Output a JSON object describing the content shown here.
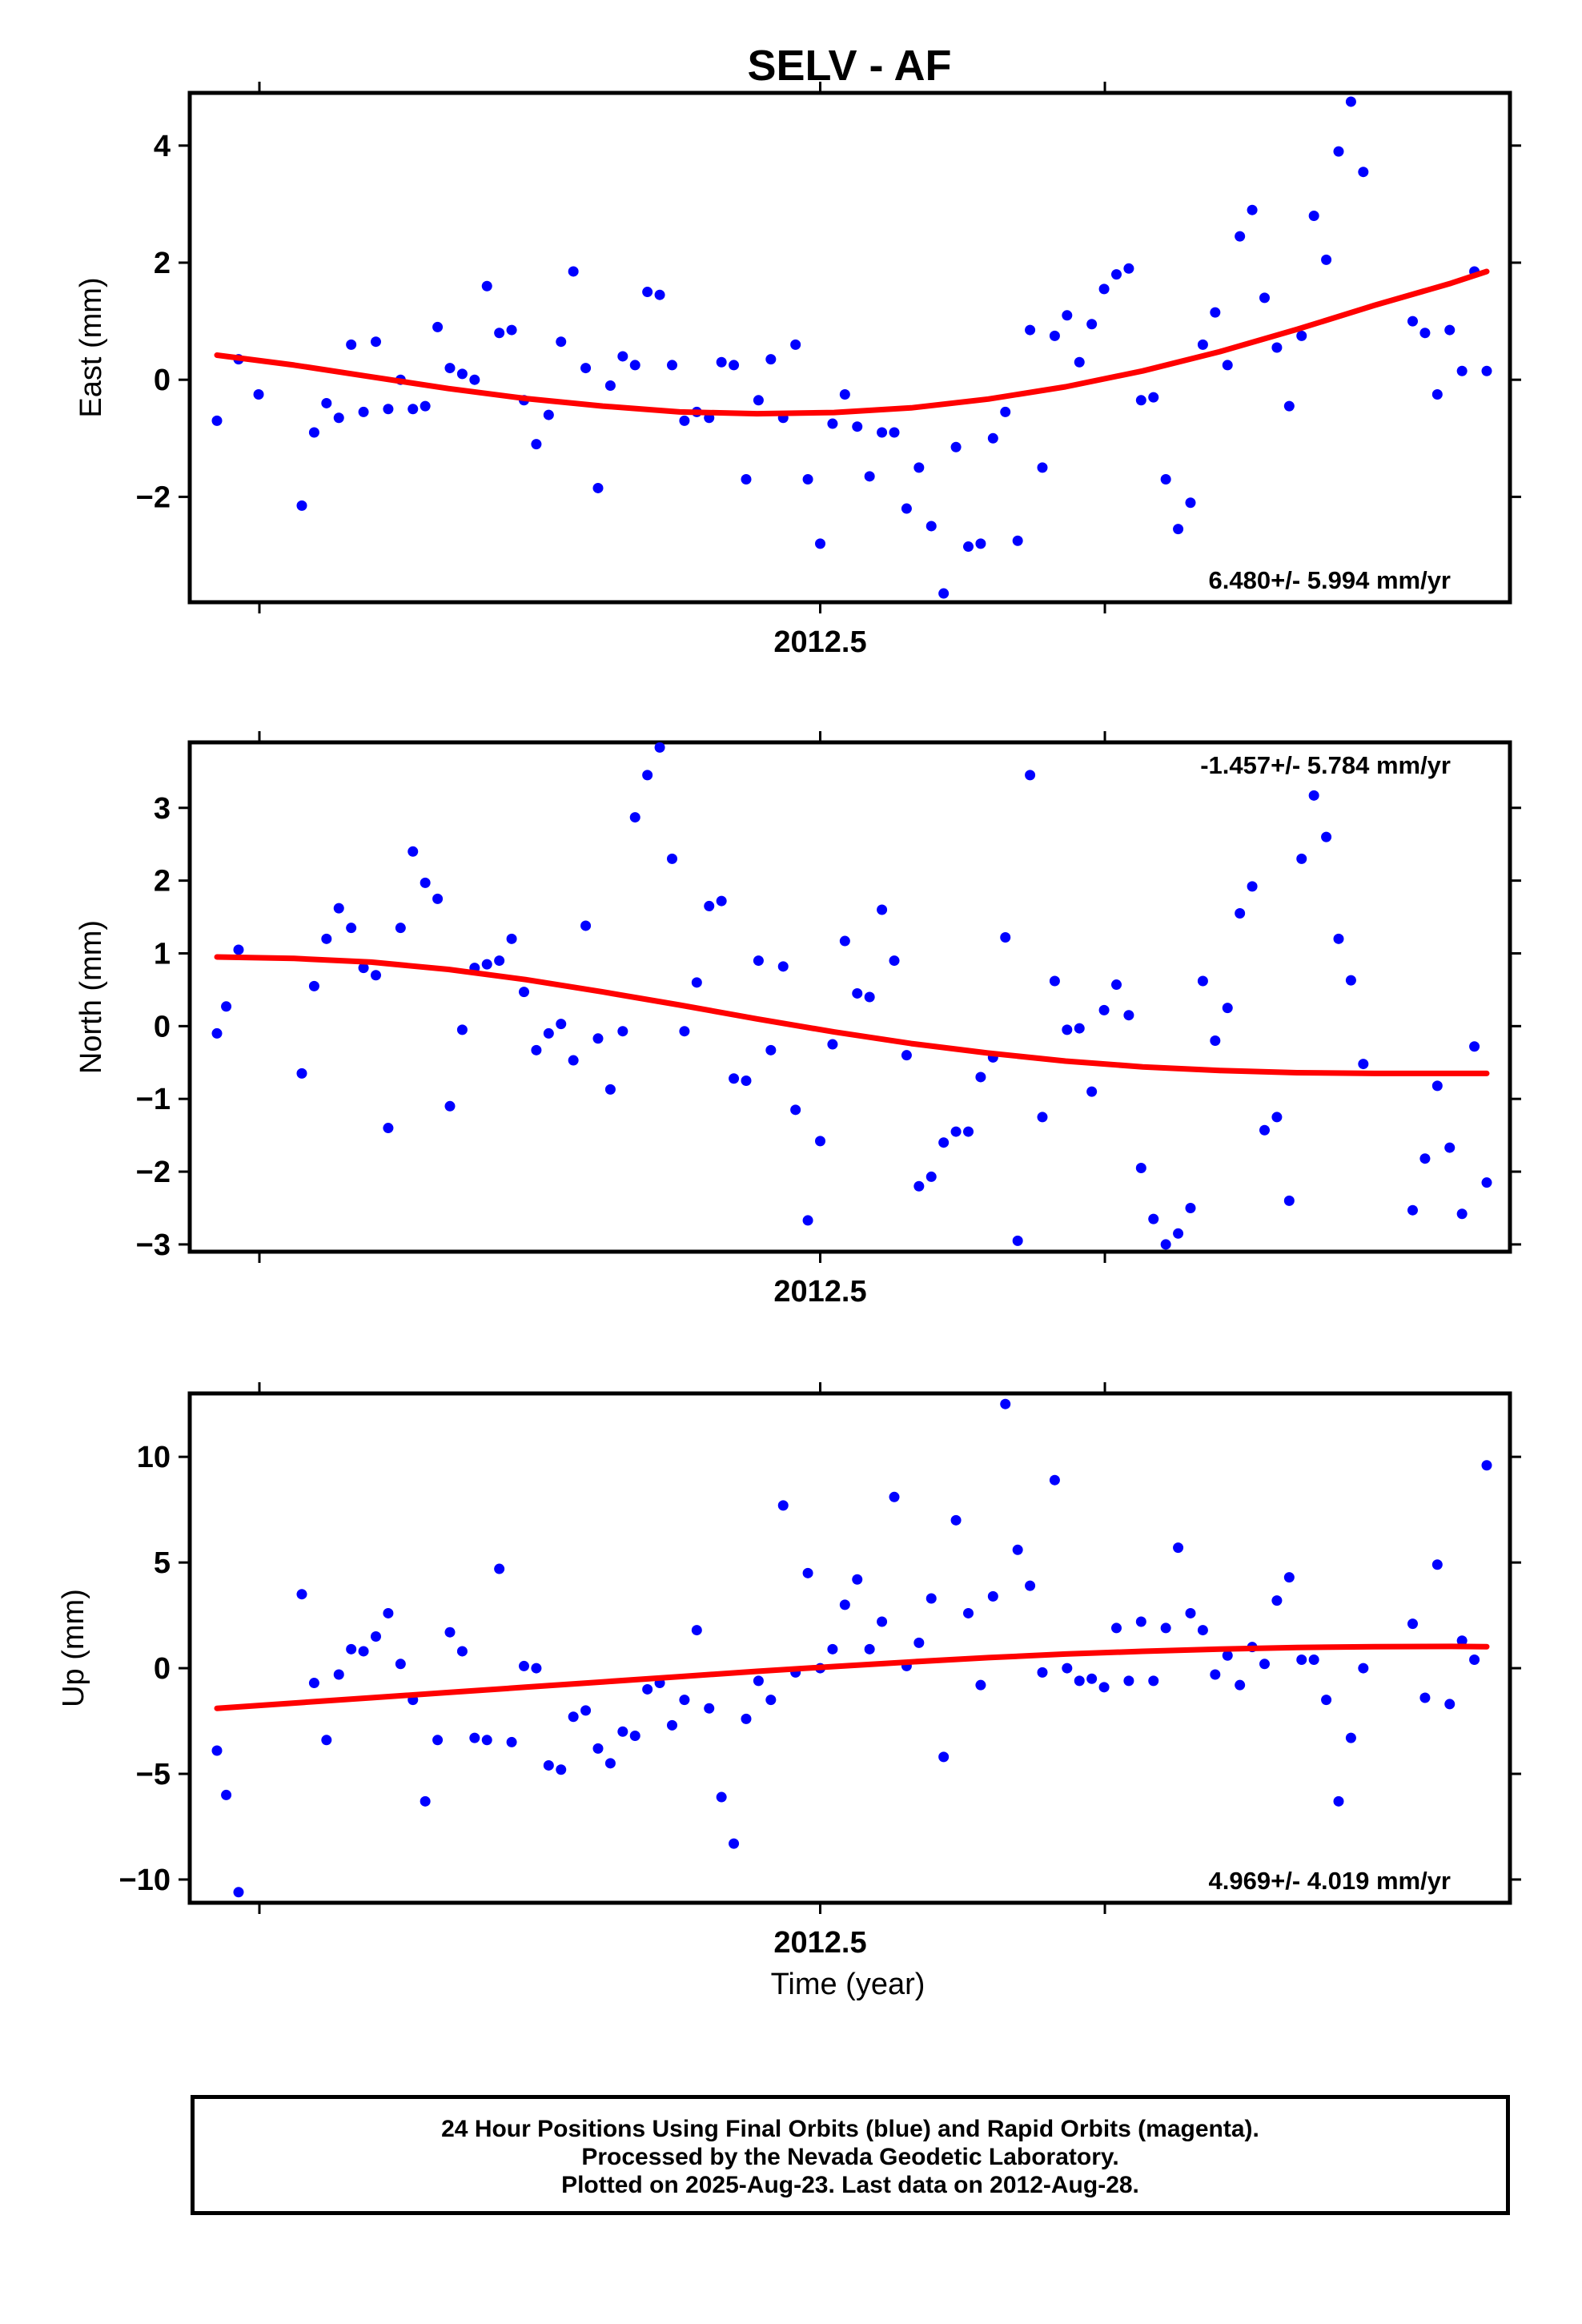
{
  "chart_data": [
    {
      "type": "scatter",
      "title": "SELV - AF",
      "ylabel": "East (mm)",
      "xlabel": "",
      "x_tick_labels": [
        "2012.5"
      ],
      "ylim": [
        -3.8,
        4.9
      ],
      "yticks": [
        -2,
        0,
        2,
        4
      ],
      "rate_label": "6.480+/- 5.994 mm/yr",
      "grid": false,
      "point_color": "#0000ff",
      "fit_color": "#ff0000",
      "points": [
        [
          150,
          -0.7
        ],
        [
          164,
          0.35
        ],
        [
          177,
          -0.25
        ],
        [
          205,
          -2.15
        ],
        [
          213,
          -0.9
        ],
        [
          221,
          -0.4
        ],
        [
          229,
          -0.65
        ],
        [
          237,
          0.6
        ],
        [
          245,
          -0.55
        ],
        [
          253,
          0.65
        ],
        [
          261,
          -0.5
        ],
        [
          269,
          0.0
        ],
        [
          277,
          -0.5
        ],
        [
          285,
          -0.45
        ],
        [
          293,
          0.9
        ],
        [
          301,
          0.2
        ],
        [
          309,
          0.1
        ],
        [
          317,
          0.0
        ],
        [
          325,
          1.6
        ],
        [
          333,
          0.8
        ],
        [
          341,
          0.85
        ],
        [
          349,
          -0.35
        ],
        [
          357,
          -1.1
        ],
        [
          365,
          -0.6
        ],
        [
          373,
          0.65
        ],
        [
          381,
          1.85
        ],
        [
          389,
          0.2
        ],
        [
          397,
          -1.85
        ],
        [
          405,
          -0.1
        ],
        [
          413,
          0.4
        ],
        [
          421,
          0.25
        ],
        [
          429,
          1.5
        ],
        [
          437,
          1.45
        ],
        [
          445,
          0.25
        ],
        [
          453,
          -0.7
        ],
        [
          461,
          -0.55
        ],
        [
          469,
          -0.65
        ],
        [
          477,
          0.3
        ],
        [
          485,
          0.25
        ],
        [
          493,
          -1.7
        ],
        [
          501,
          -0.35
        ],
        [
          509,
          0.35
        ],
        [
          517,
          -0.65
        ],
        [
          525,
          0.6
        ],
        [
          533,
          -1.7
        ],
        [
          541,
          -2.8
        ],
        [
          549,
          -0.75
        ],
        [
          557,
          -0.25
        ],
        [
          565,
          -0.8
        ],
        [
          573,
          -1.65
        ],
        [
          581,
          -0.9
        ],
        [
          589,
          -0.9
        ],
        [
          597,
          -2.2
        ],
        [
          605,
          -1.5
        ],
        [
          613,
          -2.5
        ],
        [
          621,
          -3.65
        ],
        [
          629,
          -1.15
        ],
        [
          637,
          -2.85
        ],
        [
          645,
          -2.8
        ],
        [
          653,
          -1.0
        ],
        [
          661,
          -0.55
        ],
        [
          669,
          -2.75
        ],
        [
          677,
          0.85
        ],
        [
          685,
          -1.5
        ],
        [
          693,
          0.75
        ],
        [
          701,
          1.1
        ],
        [
          709,
          0.3
        ],
        [
          717,
          0.95
        ],
        [
          725,
          1.55
        ],
        [
          733,
          1.8
        ],
        [
          741,
          1.9
        ],
        [
          749,
          -0.35
        ],
        [
          757,
          -0.3
        ],
        [
          765,
          -1.7
        ],
        [
          773,
          -2.55
        ],
        [
          781,
          -2.1
        ],
        [
          789,
          0.6
        ],
        [
          797,
          1.15
        ],
        [
          805,
          0.25
        ],
        [
          813,
          2.45
        ],
        [
          821,
          2.9
        ],
        [
          829,
          1.4
        ],
        [
          837,
          0.55
        ],
        [
          845,
          -0.45
        ],
        [
          853,
          0.75
        ],
        [
          861,
          2.8
        ],
        [
          869,
          2.05
        ],
        [
          877,
          3.9
        ],
        [
          885,
          4.75
        ],
        [
          893,
          3.55
        ],
        [
          925,
          1.0
        ],
        [
          933,
          0.8
        ],
        [
          941,
          -0.25
        ],
        [
          949,
          0.85
        ],
        [
          957,
          0.15
        ],
        [
          965,
          1.85
        ],
        [
          973,
          0.15
        ]
      ],
      "fit": [
        [
          150,
          0.42
        ],
        [
          200,
          0.25
        ],
        [
          250,
          0.05
        ],
        [
          300,
          -0.15
        ],
        [
          350,
          -0.32
        ],
        [
          400,
          -0.45
        ],
        [
          450,
          -0.55
        ],
        [
          500,
          -0.58
        ],
        [
          550,
          -0.56
        ],
        [
          600,
          -0.48
        ],
        [
          650,
          -0.33
        ],
        [
          700,
          -0.12
        ],
        [
          750,
          0.15
        ],
        [
          800,
          0.48
        ],
        [
          850,
          0.86
        ],
        [
          900,
          1.27
        ],
        [
          950,
          1.65
        ],
        [
          973,
          1.85
        ]
      ]
    },
    {
      "type": "scatter",
      "title": "",
      "ylabel": "North (mm)",
      "xlabel": "",
      "x_tick_labels": [
        "2012.5"
      ],
      "ylim": [
        -3.1,
        3.9
      ],
      "yticks": [
        -3,
        -2,
        -1,
        0,
        1,
        2,
        3
      ],
      "rate_label": "-1.457+/- 5.784 mm/yr",
      "grid": false,
      "point_color": "#0000ff",
      "fit_color": "#ff0000",
      "points": [
        [
          150,
          -0.1
        ],
        [
          156,
          0.27
        ],
        [
          164,
          1.05
        ],
        [
          205,
          -0.65
        ],
        [
          213,
          0.55
        ],
        [
          221,
          1.2
        ],
        [
          229,
          1.62
        ],
        [
          237,
          1.35
        ],
        [
          245,
          0.8
        ],
        [
          253,
          0.7
        ],
        [
          261,
          -1.4
        ],
        [
          269,
          1.35
        ],
        [
          277,
          2.4
        ],
        [
          285,
          1.97
        ],
        [
          293,
          1.75
        ],
        [
          301,
          -1.1
        ],
        [
          309,
          -0.05
        ],
        [
          317,
          0.8
        ],
        [
          325,
          0.85
        ],
        [
          333,
          0.9
        ],
        [
          341,
          1.2
        ],
        [
          349,
          0.47
        ],
        [
          357,
          -0.33
        ],
        [
          365,
          -0.1
        ],
        [
          373,
          0.03
        ],
        [
          381,
          -0.47
        ],
        [
          389,
          1.38
        ],
        [
          397,
          -0.17
        ],
        [
          405,
          -0.87
        ],
        [
          413,
          -0.07
        ],
        [
          421,
          2.87
        ],
        [
          429,
          3.45
        ],
        [
          437,
          3.83
        ],
        [
          445,
          2.3
        ],
        [
          453,
          -0.07
        ],
        [
          461,
          0.6
        ],
        [
          469,
          1.65
        ],
        [
          477,
          1.72
        ],
        [
          485,
          -0.72
        ],
        [
          493,
          -0.75
        ],
        [
          501,
          0.9
        ],
        [
          509,
          -0.33
        ],
        [
          517,
          0.82
        ],
        [
          525,
          -1.15
        ],
        [
          533,
          -2.67
        ],
        [
          541,
          -1.58
        ],
        [
          549,
          -0.25
        ],
        [
          557,
          1.17
        ],
        [
          565,
          0.45
        ],
        [
          573,
          0.4
        ],
        [
          581,
          1.6
        ],
        [
          589,
          0.9
        ],
        [
          597,
          -0.4
        ],
        [
          605,
          -2.2
        ],
        [
          613,
          -2.07
        ],
        [
          621,
          -1.6
        ],
        [
          629,
          -1.45
        ],
        [
          637,
          -1.45
        ],
        [
          645,
          -0.7
        ],
        [
          653,
          -0.43
        ],
        [
          661,
          1.22
        ],
        [
          669,
          -2.95
        ],
        [
          677,
          3.45
        ],
        [
          685,
          -1.25
        ],
        [
          693,
          0.62
        ],
        [
          701,
          -0.05
        ],
        [
          709,
          -0.03
        ],
        [
          717,
          -0.9
        ],
        [
          725,
          0.22
        ],
        [
          733,
          0.57
        ],
        [
          741,
          0.15
        ],
        [
          749,
          -1.95
        ],
        [
          757,
          -2.65
        ],
        [
          765,
          -3.0
        ],
        [
          773,
          -2.85
        ],
        [
          781,
          -2.5
        ],
        [
          789,
          0.62
        ],
        [
          797,
          -0.2
        ],
        [
          805,
          0.25
        ],
        [
          813,
          1.55
        ],
        [
          821,
          1.92
        ],
        [
          829,
          -1.43
        ],
        [
          837,
          -1.25
        ],
        [
          845,
          -2.4
        ],
        [
          853,
          2.3
        ],
        [
          861,
          3.17
        ],
        [
          869,
          2.6
        ],
        [
          877,
          1.2
        ],
        [
          885,
          0.63
        ],
        [
          893,
          -0.52
        ],
        [
          925,
          -2.53
        ],
        [
          933,
          -1.82
        ],
        [
          941,
          -0.82
        ],
        [
          949,
          -1.67
        ],
        [
          957,
          -2.58
        ],
        [
          965,
          -0.28
        ],
        [
          973,
          -2.15
        ]
      ],
      "fit": [
        [
          150,
          0.95
        ],
        [
          200,
          0.93
        ],
        [
          250,
          0.88
        ],
        [
          300,
          0.78
        ],
        [
          350,
          0.64
        ],
        [
          400,
          0.47
        ],
        [
          450,
          0.29
        ],
        [
          500,
          0.1
        ],
        [
          550,
          -0.08
        ],
        [
          600,
          -0.24
        ],
        [
          650,
          -0.37
        ],
        [
          700,
          -0.48
        ],
        [
          750,
          -0.56
        ],
        [
          800,
          -0.61
        ],
        [
          850,
          -0.64
        ],
        [
          900,
          -0.65
        ],
        [
          950,
          -0.65
        ],
        [
          973,
          -0.65
        ]
      ]
    },
    {
      "type": "scatter",
      "title": "",
      "ylabel": "Up (mm)",
      "xlabel": "Time (year)",
      "x_tick_labels": [
        "2012.5"
      ],
      "ylim": [
        -11.1,
        13.0
      ],
      "yticks": [
        -10,
        -5,
        0,
        5,
        10
      ],
      "rate_label": "4.969+/- 4.019 mm/yr",
      "grid": false,
      "point_color": "#0000ff",
      "fit_color": "#ff0000",
      "points": [
        [
          150,
          -3.9
        ],
        [
          156,
          -6.0
        ],
        [
          164,
          -10.6
        ],
        [
          205,
          3.5
        ],
        [
          213,
          -0.7
        ],
        [
          221,
          -3.4
        ],
        [
          229,
          -0.3
        ],
        [
          237,
          0.9
        ],
        [
          245,
          0.8
        ],
        [
          253,
          1.5
        ],
        [
          261,
          2.6
        ],
        [
          269,
          0.2
        ],
        [
          277,
          -1.5
        ],
        [
          285,
          -6.3
        ],
        [
          293,
          -3.4
        ],
        [
          301,
          1.7
        ],
        [
          309,
          0.8
        ],
        [
          317,
          -3.3
        ],
        [
          325,
          -3.4
        ],
        [
          333,
          4.7
        ],
        [
          341,
          -3.5
        ],
        [
          349,
          0.1
        ],
        [
          357,
          0.0
        ],
        [
          365,
          -4.6
        ],
        [
          373,
          -4.8
        ],
        [
          381,
          -2.3
        ],
        [
          389,
          -2.0
        ],
        [
          397,
          -3.8
        ],
        [
          405,
          -4.5
        ],
        [
          413,
          -3.0
        ],
        [
          421,
          -3.2
        ],
        [
          429,
          -1.0
        ],
        [
          437,
          -0.7
        ],
        [
          445,
          -2.7
        ],
        [
          453,
          -1.5
        ],
        [
          461,
          1.8
        ],
        [
          469,
          -1.9
        ],
        [
          477,
          -6.1
        ],
        [
          485,
          -8.3
        ],
        [
          493,
          -2.4
        ],
        [
          501,
          -0.6
        ],
        [
          509,
          -1.5
        ],
        [
          517,
          7.7
        ],
        [
          525,
          -0.2
        ],
        [
          533,
          4.5
        ],
        [
          541,
          0.0
        ],
        [
          549,
          0.9
        ],
        [
          557,
          3.0
        ],
        [
          565,
          4.2
        ],
        [
          573,
          0.9
        ],
        [
          581,
          2.2
        ],
        [
          589,
          8.1
        ],
        [
          597,
          0.1
        ],
        [
          605,
          1.2
        ],
        [
          613,
          3.3
        ],
        [
          621,
          -4.2
        ],
        [
          629,
          7.0
        ],
        [
          637,
          2.6
        ],
        [
          645,
          -0.8
        ],
        [
          653,
          3.4
        ],
        [
          661,
          12.5
        ],
        [
          669,
          5.6
        ],
        [
          677,
          3.9
        ],
        [
          685,
          -0.2
        ],
        [
          693,
          8.9
        ],
        [
          701,
          0.0
        ],
        [
          709,
          -0.6
        ],
        [
          717,
          -0.5
        ],
        [
          725,
          -0.9
        ],
        [
          733,
          1.9
        ],
        [
          741,
          -0.6
        ],
        [
          749,
          2.2
        ],
        [
          757,
          -0.6
        ],
        [
          765,
          1.9
        ],
        [
          773,
          5.7
        ],
        [
          781,
          2.6
        ],
        [
          789,
          1.8
        ],
        [
          797,
          -0.3
        ],
        [
          805,
          0.6
        ],
        [
          813,
          -0.8
        ],
        [
          821,
          1.0
        ],
        [
          829,
          0.2
        ],
        [
          837,
          3.2
        ],
        [
          845,
          4.3
        ],
        [
          853,
          0.4
        ],
        [
          861,
          0.4
        ],
        [
          869,
          -1.5
        ],
        [
          877,
          -6.3
        ],
        [
          885,
          -3.3
        ],
        [
          893,
          0.0
        ],
        [
          925,
          2.1
        ],
        [
          933,
          -1.4
        ],
        [
          941,
          4.9
        ],
        [
          949,
          -1.7
        ],
        [
          957,
          1.3
        ],
        [
          965,
          0.4
        ],
        [
          973,
          9.6
        ]
      ],
      "fit": [
        [
          150,
          -1.9
        ],
        [
          200,
          -1.65
        ],
        [
          250,
          -1.4
        ],
        [
          300,
          -1.15
        ],
        [
          350,
          -0.9
        ],
        [
          400,
          -0.65
        ],
        [
          450,
          -0.4
        ],
        [
          500,
          -0.15
        ],
        [
          550,
          0.08
        ],
        [
          600,
          0.3
        ],
        [
          650,
          0.5
        ],
        [
          700,
          0.67
        ],
        [
          750,
          0.8
        ],
        [
          800,
          0.9
        ],
        [
          850,
          0.98
        ],
        [
          900,
          1.02
        ],
        [
          950,
          1.03
        ],
        [
          973,
          1.02
        ]
      ]
    }
  ],
  "footer": {
    "line1": "24 Hour Positions Using Final Orbits (blue) and Rapid Orbits (magenta).",
    "line2": "Processed by the Nevada Geodetic Laboratory.",
    "line3": "Plotted on 2025-Aug-23. Last data on 2012-Aug-28."
  }
}
